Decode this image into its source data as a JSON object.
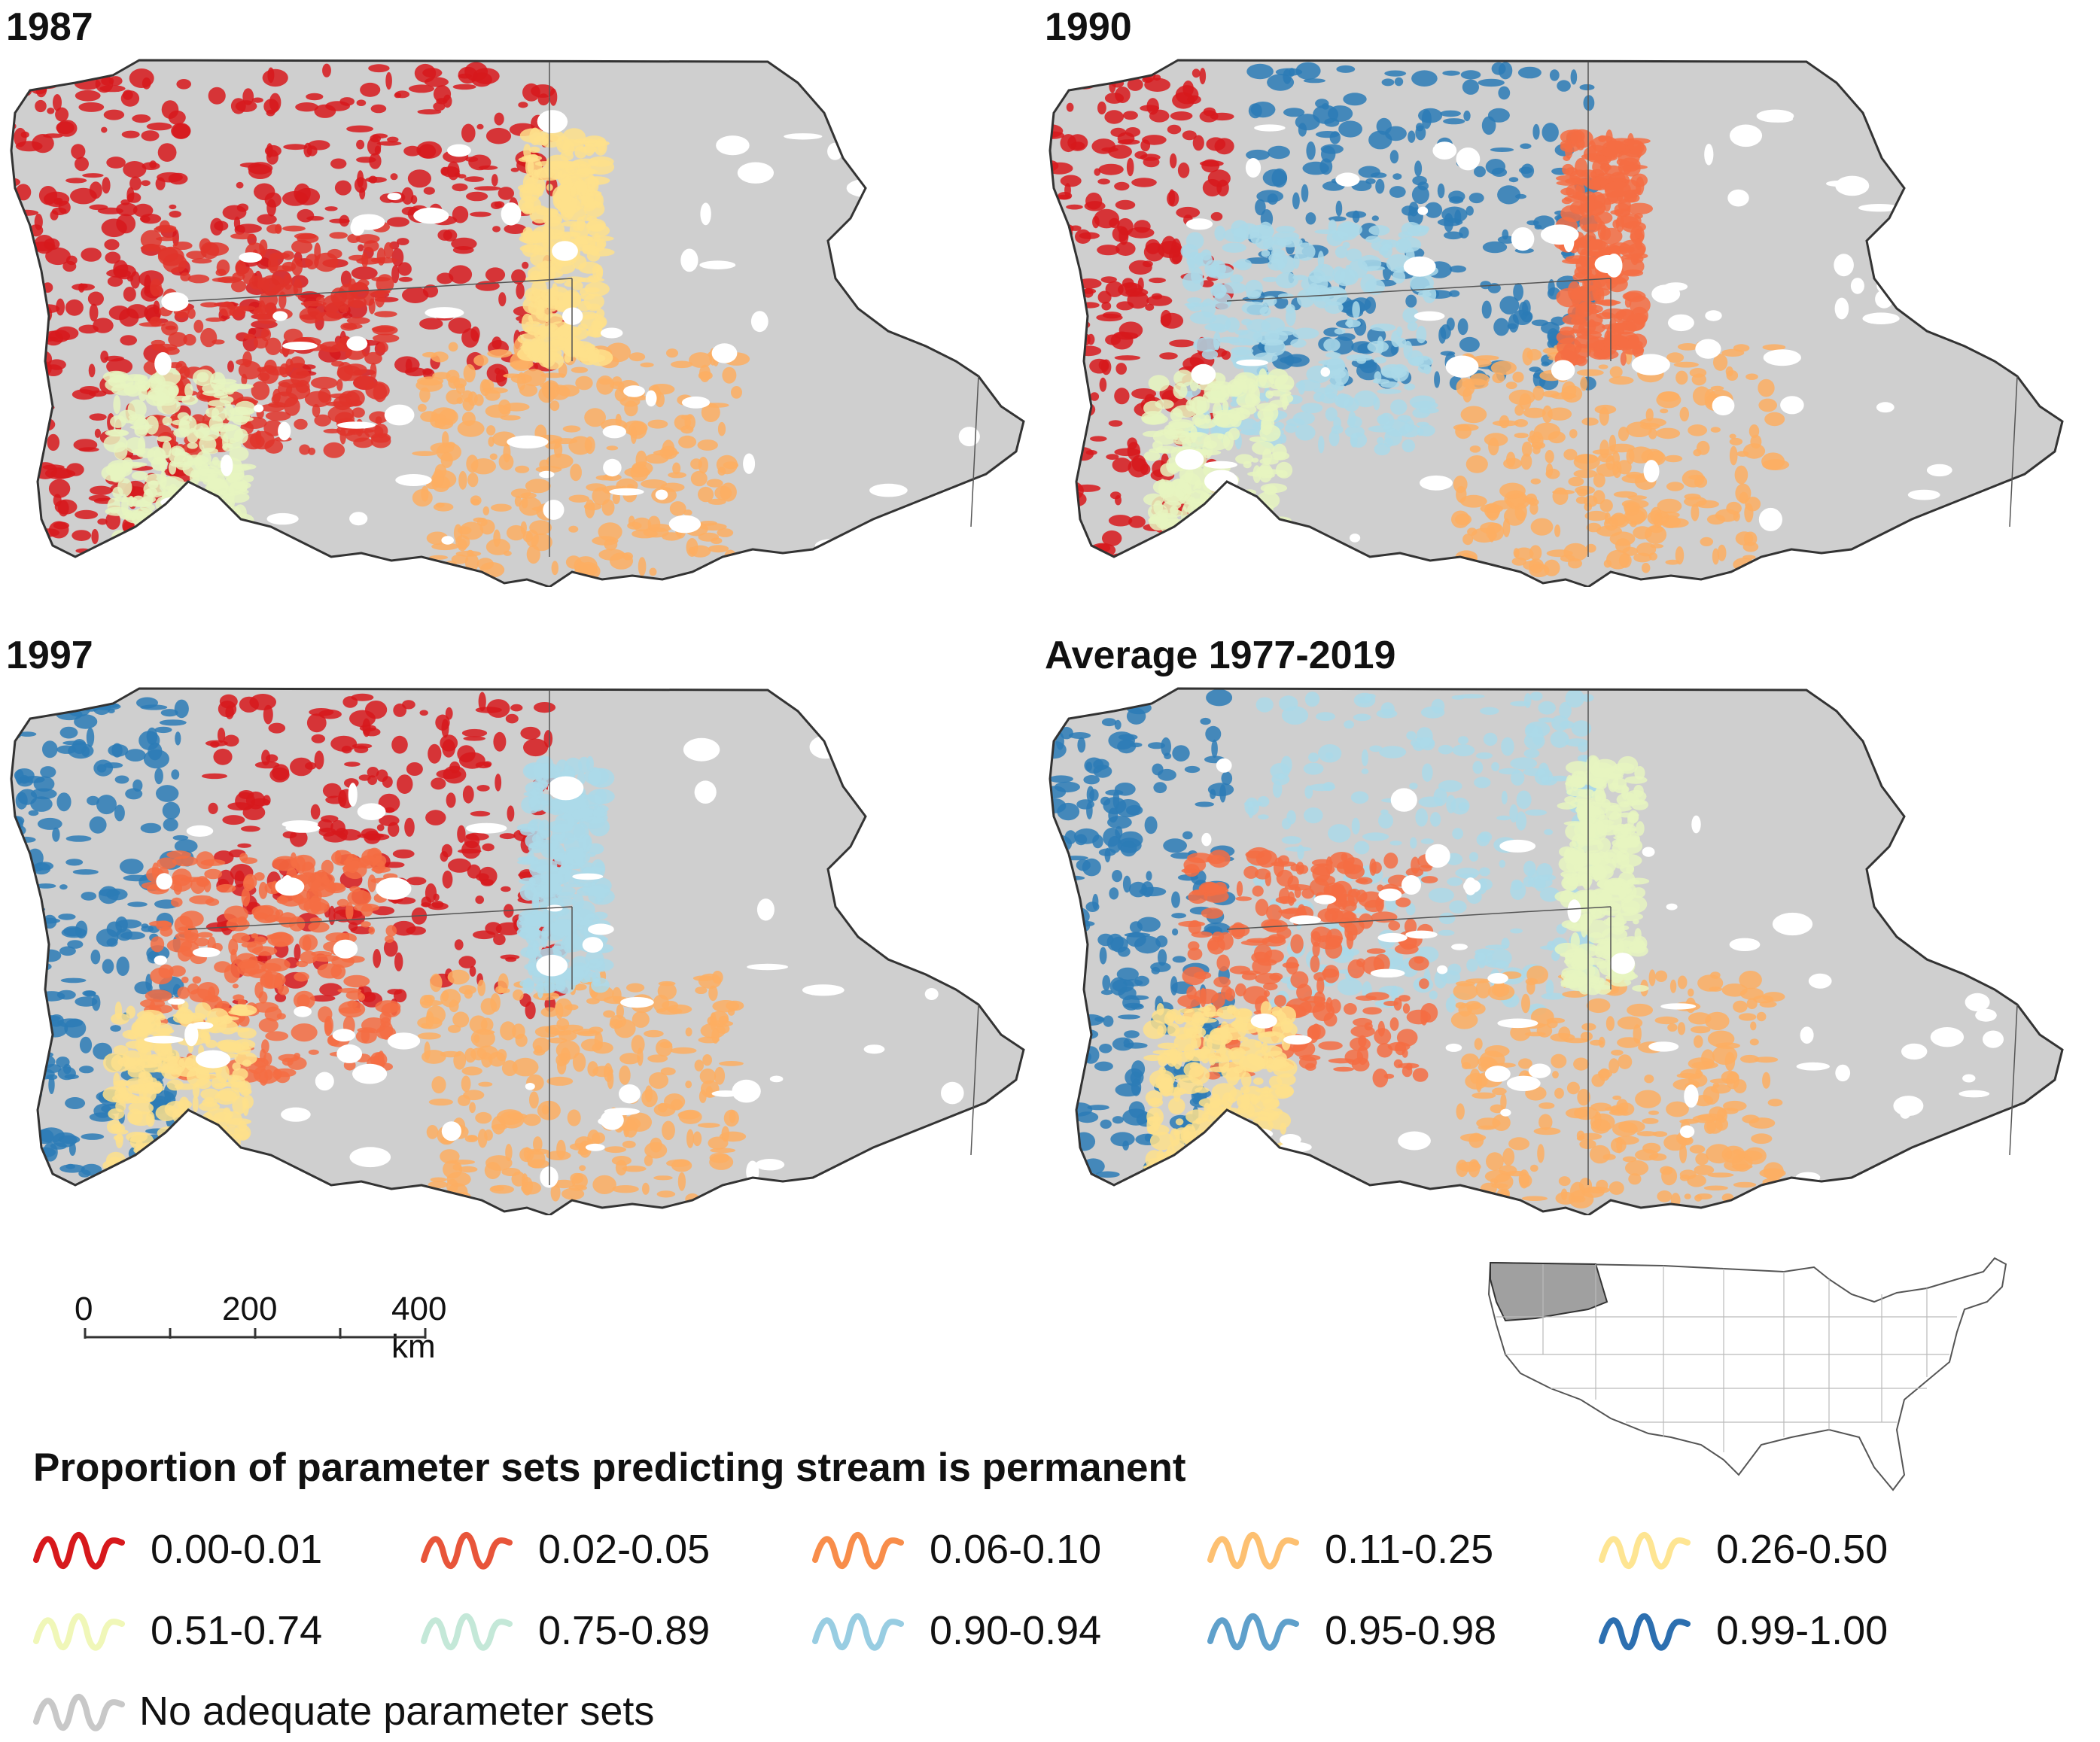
{
  "panels": [
    {
      "title": "1987",
      "palette": [
        "#d7191c",
        "#d7191c",
        "#e0342a",
        "#fdae61",
        "#e6f5c0",
        "#fee08b"
      ]
    },
    {
      "title": "1990",
      "palette": [
        "#d7191c",
        "#2c7bb6",
        "#abd9e9",
        "#fdae61",
        "#e6f5c0",
        "#f46d43"
      ]
    },
    {
      "title": "1997",
      "palette": [
        "#2c7bb6",
        "#d7191c",
        "#f46d43",
        "#fdae61",
        "#fee08b",
        "#abd9e9"
      ]
    },
    {
      "title": "Average 1977-2019",
      "palette": [
        "#2c7bb6",
        "#abd9e9",
        "#f46d43",
        "#fdae61",
        "#fee08b",
        "#e6f5c0"
      ]
    }
  ],
  "scale_bar": {
    "labels": [
      "0",
      "200",
      "400 km"
    ]
  },
  "inset": {
    "name": "Contiguous United States locator",
    "highlight_color": "#a0a0a0"
  },
  "legend": {
    "title": "Proportion of parameter sets predicting stream is permanent",
    "items": [
      {
        "label": "0.00-0.01",
        "color": "#d7191c"
      },
      {
        "label": "0.02-0.05",
        "color": "#e8553a"
      },
      {
        "label": "0.06-0.10",
        "color": "#f88d4a"
      },
      {
        "label": "0.11-0.25",
        "color": "#fdc071"
      },
      {
        "label": "0.26-0.50",
        "color": "#fee592"
      },
      {
        "label": "0.51-0.74",
        "color": "#f0f7b8"
      },
      {
        "label": "0.75-0.89",
        "color": "#c4e8d8"
      },
      {
        "label": "0.90-0.94",
        "color": "#98cde2"
      },
      {
        "label": "0.95-0.98",
        "color": "#5fa0cb"
      },
      {
        "label": "0.99-1.00",
        "color": "#2c6fb0"
      }
    ],
    "no_data": {
      "label": "No adequate parameter sets",
      "color": "#c8c8c8"
    }
  },
  "colors": {
    "no_data_fill": "#cfcfcf",
    "outline": "#333333"
  }
}
